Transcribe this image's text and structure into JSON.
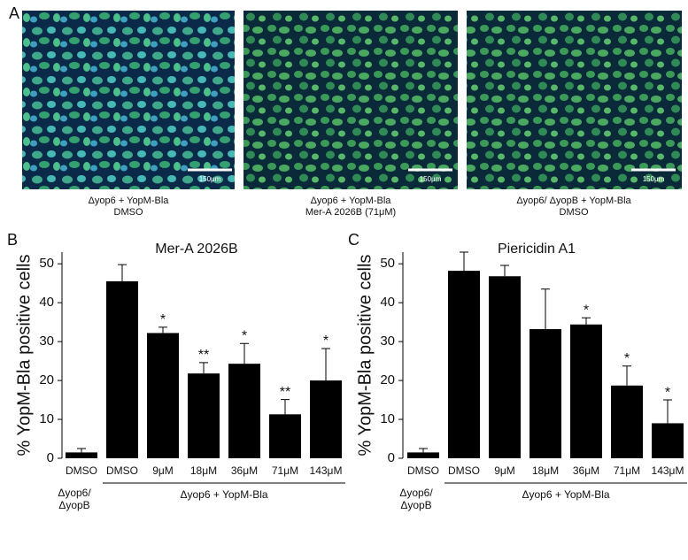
{
  "panel_labels": [
    "A",
    "B",
    "C"
  ],
  "images": [
    {
      "scale_bar": "150μm",
      "caption": [
        "Δyop6 + YopM-Bla",
        "DMSO"
      ]
    },
    {
      "scale_bar": "150μm",
      "caption": [
        "Δyop6 + YopM-Bla",
        "Mer-A 2026B (71μM)"
      ]
    },
    {
      "scale_bar": "150μm",
      "caption": [
        "Δyop6/ ΔyopB + YopM-Bla",
        "DMSO"
      ]
    }
  ],
  "chart_data": [
    {
      "type": "bar",
      "title": "Mer-A 2026B",
      "y_label": "% YopM-Bla positive cells",
      "categories": [
        "DMSO",
        "DMSO",
        "9μM",
        "18μM",
        "36μM",
        "71μM",
        "143μM"
      ],
      "values": [
        1.5,
        45.5,
        32.2,
        21.8,
        24.3,
        11.3,
        20.0
      ],
      "errors": [
        1.0,
        4.3,
        1.5,
        2.8,
        5.2,
        3.8,
        8.2
      ],
      "significance": [
        null,
        null,
        "*",
        "**",
        "*",
        "**",
        "*"
      ],
      "group_labels": [
        [
          "Δyop6/",
          "ΔyopB"
        ],
        [
          "Δyop6 + YopM-Bla"
        ]
      ],
      "color": "#000000",
      "ylim": [
        0,
        53
      ],
      "yticks": [
        0,
        10,
        20,
        30,
        40,
        50
      ]
    },
    {
      "type": "bar",
      "title": "Piericidin A1",
      "y_label": "% YopM-Bla positive cells",
      "categories": [
        "DMSO",
        "DMSO",
        "9μM",
        "18μM",
        "36μM",
        "71μM",
        "143μM"
      ],
      "values": [
        1.5,
        48.2,
        46.8,
        33.2,
        34.4,
        18.7,
        9.0
      ],
      "errors": [
        1.0,
        4.8,
        2.8,
        10.3,
        1.7,
        5.0,
        6.0
      ],
      "significance": [
        null,
        null,
        null,
        null,
        "*",
        "*",
        "*"
      ],
      "group_labels": [
        [
          "Δyop6/",
          "ΔyopB"
        ],
        [
          "Δyop6 + YopM-Bla"
        ]
      ],
      "color": "#000000",
      "ylim": [
        0,
        53
      ],
      "yticks": [
        0,
        10,
        20,
        30,
        40,
        50
      ]
    }
  ]
}
